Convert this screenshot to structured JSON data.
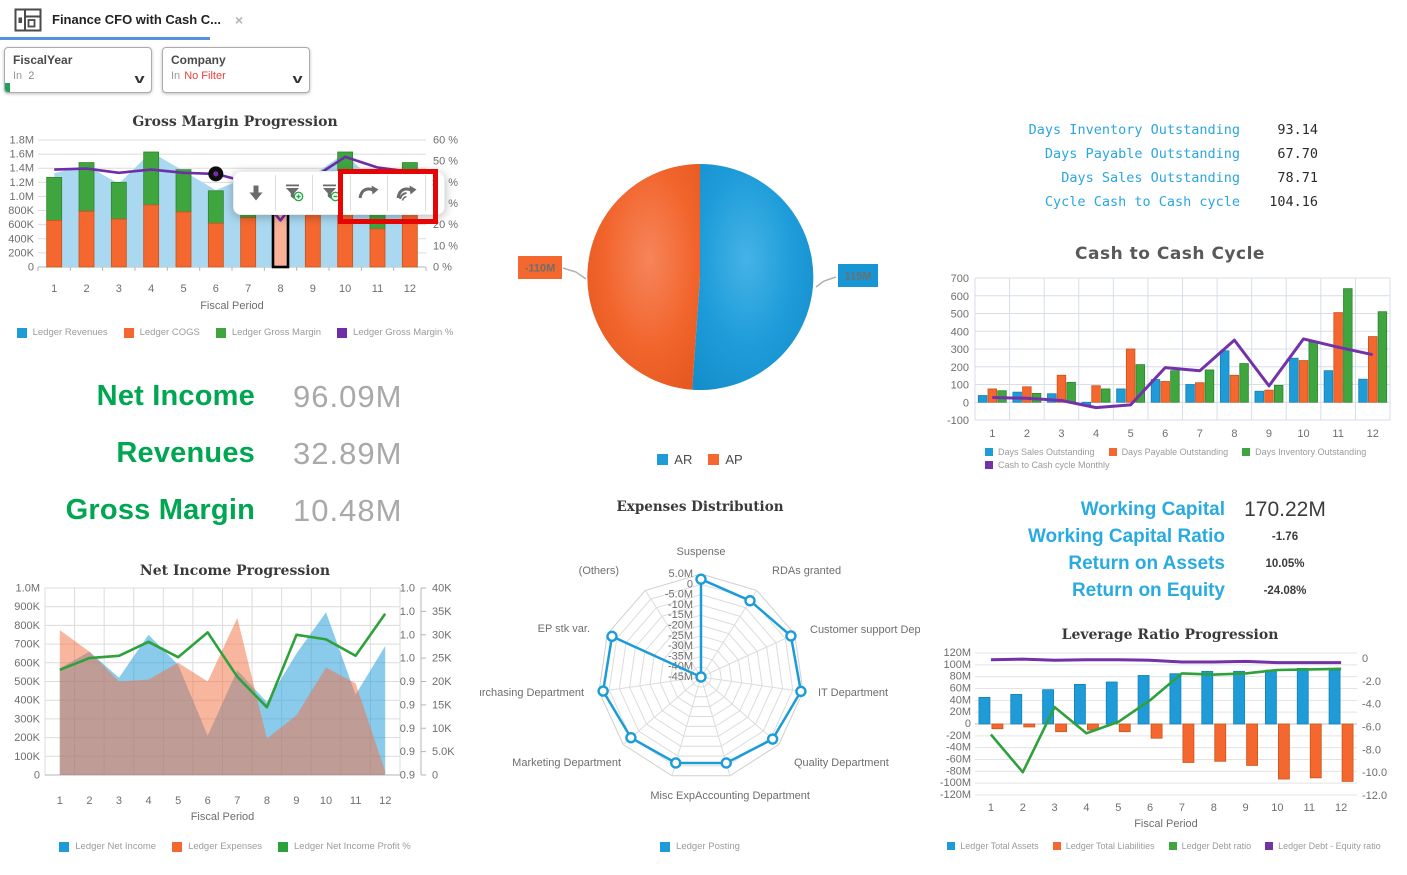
{
  "tab": {
    "title": "Finance CFO with Cash C...",
    "close": "×"
  },
  "filters": [
    {
      "label": "FiscalYear",
      "operator": "In",
      "value": "2"
    },
    {
      "label": "Company",
      "operator": "In",
      "value": "No Filter"
    }
  ],
  "toolbar_popup": {
    "close": "×",
    "buttons": [
      "drill-down",
      "add-filter",
      "exclude-filter",
      "undo",
      "undo-all"
    ]
  },
  "kpi_left": [
    {
      "label": "Net Income",
      "value": "96.09M"
    },
    {
      "label": "Revenues",
      "value": "32.89M"
    },
    {
      "label": "Gross Margin",
      "value": "10.48M"
    }
  ],
  "kpi_days": [
    {
      "label": "Days Inventory Outstanding",
      "value": "93.14"
    },
    {
      "label": "Days Payable Outstanding",
      "value": "67.70"
    },
    {
      "label": "Days Sales Outstanding",
      "value": "78.71"
    },
    {
      "label": "Cycle Cash to Cash cycle",
      "value": "104.16"
    }
  ],
  "kpi_working": [
    {
      "label": "Working Capital",
      "value": "170.22M"
    },
    {
      "label": "Working Capital Ratio",
      "value": "-1.76"
    },
    {
      "label": "Return on Assets",
      "value": "10.05%"
    },
    {
      "label": "Return on Equity",
      "value": "-24.08%"
    }
  ],
  "colors": {
    "blue": "#1f9cd8",
    "orange": "#f4682f",
    "green": "#3fa63f",
    "purple": "#6f2da8",
    "light_blue_area": "#a9d8f0",
    "kpi_green": "#00a651",
    "kpi_blue": "#29abe2",
    "filter_red": "#e8413c",
    "tab_underline": "#5494da",
    "highlight_red": "#e60505"
  },
  "chart_data": [
    {
      "type": "bar",
      "title": "Gross Margin Progression",
      "categories": [
        "1",
        "2",
        "3",
        "4",
        "5",
        "6",
        "7",
        "8",
        "9",
        "10",
        "11",
        "12"
      ],
      "xlabel": "Fiscal Period",
      "ylim_left": [
        0,
        1800000
      ],
      "ylim_right": [
        0,
        60
      ],
      "left_ticks": [
        "1.8M",
        "1.6M",
        "1.4M",
        "1.2M",
        "1.0M",
        "800K",
        "600K",
        "400K",
        "200K",
        "0"
      ],
      "right_ticks": [
        "60 %",
        "50 %",
        "40 %",
        "30 %",
        "20 %",
        "10 %",
        "0 %"
      ],
      "selected_period": 8,
      "marker_period": 6,
      "series": [
        {
          "name": "Ledger Revenues",
          "type": "area",
          "color": "#a9d8f0",
          "values_M": [
            1.33,
            1.44,
            1.18,
            1.63,
            1.36,
            1.09,
            1.28,
            1.22,
            1.3,
            1.62,
            1.13,
            1.47
          ]
        },
        {
          "name": "Ledger COGS",
          "type": "bar",
          "color": "#f4682f",
          "values_K": [
            660,
            790,
            680,
            880,
            780,
            620,
            700,
            780,
            790,
            760,
            540,
            790
          ]
        },
        {
          "name": "Ledger Gross Margin",
          "type": "bar-stacked",
          "color": "#3fa63f",
          "values_K": [
            610,
            690,
            520,
            750,
            600,
            460,
            600,
            470,
            510,
            870,
            610,
            690
          ]
        },
        {
          "name": "Ledger Gross Margin %",
          "type": "line",
          "color": "#6f2da8",
          "values_pct": [
            46,
            46.5,
            44.5,
            46,
            44.5,
            44,
            40,
            22,
            42,
            52,
            47,
            45
          ]
        }
      ],
      "legend": [
        {
          "label": "Ledger Revenues",
          "color": "#1f9cd8"
        },
        {
          "label": "Ledger COGS",
          "color": "#f4682f"
        },
        {
          "label": "Ledger Gross Margin",
          "color": "#3fa63f"
        },
        {
          "label": "Ledger Gross Margin %",
          "color": "#6f2da8"
        }
      ]
    },
    {
      "type": "area",
      "title": "Net Income Progression",
      "categories": [
        "1",
        "2",
        "3",
        "4",
        "5",
        "6",
        "7",
        "8",
        "9",
        "10",
        "11",
        "12"
      ],
      "xlabel": "Fiscal Period",
      "ylim_left": [
        0,
        1000000
      ],
      "left_ticks": [
        "1.0M",
        "900K",
        "800K",
        "700K",
        "600K",
        "500K",
        "400K",
        "300K",
        "200K",
        "100K",
        "0"
      ],
      "right_ticks_ratio": [
        "1.0",
        "1.0",
        "1.0",
        "1.0",
        "0.9",
        "0.9",
        "0.9",
        "0.9",
        "0.9"
      ],
      "right_ticks_k": [
        "40K",
        "35K",
        "30K",
        "25K",
        "20K",
        "15K",
        "10K",
        "5.0K",
        "0"
      ],
      "series": [
        {
          "name": "Ledger Net Income",
          "type": "area",
          "color": "#1f9cd8",
          "values_M": [
            0.57,
            0.66,
            0.52,
            0.75,
            0.59,
            0.21,
            0.56,
            0.39,
            0.65,
            0.87,
            0.43,
            0.69
          ]
        },
        {
          "name": "Ledger Expenses",
          "type": "area",
          "color": "#f4682f",
          "values_M": [
            0.775,
            0.66,
            0.5,
            0.51,
            0.6,
            0.5,
            0.84,
            0.195,
            0.32,
            0.575,
            0.49,
            0.02
          ]
        },
        {
          "name": "Ledger Net Income Profit %",
          "type": "line",
          "color": "#2ea13c",
          "values_K": [
            22.5,
            25,
            25.5,
            28.5,
            25.2,
            30.5,
            21,
            14.5,
            30,
            29,
            25.5,
            34.5
          ]
        }
      ],
      "legend": [
        {
          "label": "Ledger Net Income",
          "color": "#1f9cd8"
        },
        {
          "label": "Ledger Expenses",
          "color": "#f4682f"
        },
        {
          "label": "Ledger Net Income Profit %",
          "color": "#2ea13c"
        }
      ]
    },
    {
      "type": "pie",
      "title": "",
      "slices": [
        {
          "label": "AR",
          "value": 115,
          "value_label": "115M",
          "color": "#1898d5"
        },
        {
          "label": "AP",
          "value": 110,
          "value_label": "-110M",
          "color": "#f4682f"
        }
      ],
      "legend": [
        {
          "label": "AR",
          "color": "#1f9cd8"
        },
        {
          "label": "AP",
          "color": "#f4682f"
        }
      ]
    },
    {
      "type": "radar",
      "title": "Expenses Distribution",
      "axes": [
        "Suspense",
        "RDAs granted",
        "Customer support Department",
        "IT Department",
        "Quality Department",
        "Accounting Department",
        "Misc Exp",
        "Marketing Department",
        "Purchasing Department",
        "EP stk var.",
        "(Others)"
      ],
      "scale_ticks": [
        "5.0M",
        "0",
        "-5.0M",
        "-10M",
        "-15M",
        "-20M",
        "-25M",
        "-30M",
        "-35M",
        "-40M",
        "-45M"
      ],
      "scale_range_M": [
        -45,
        5
      ],
      "series": [
        {
          "name": "Ledger Posting",
          "color": "#1b9cd9",
          "values_M": [
            2.5,
            -1,
            3,
            4,
            1,
            -1.5,
            -1.5,
            0,
            3,
            2.5,
            -45
          ]
        }
      ],
      "legend": [
        {
          "label": "Ledger Posting",
          "color": "#1f9cd8"
        }
      ]
    },
    {
      "type": "bar",
      "title": "Cash to Cash Cycle",
      "categories": [
        "1",
        "2",
        "3",
        "4",
        "5",
        "6",
        "7",
        "8",
        "9",
        "10",
        "11",
        "12"
      ],
      "ylim": [
        -100,
        700
      ],
      "y_ticks": [
        "700",
        "600",
        "500",
        "400",
        "300",
        "200",
        "100",
        "0",
        "-100"
      ],
      "series": [
        {
          "name": "Days Sales Outstanding",
          "type": "bar",
          "color": "#1f9cd8",
          "values": [
            38,
            57,
            48,
            -18,
            75,
            128,
            100,
            290,
            62,
            248,
            178,
            130
          ]
        },
        {
          "name": "Days Payable Outstanding",
          "type": "bar",
          "color": "#f4682f",
          "values": [
            75,
            87,
            152,
            93,
            300,
            117,
            110,
            152,
            68,
            235,
            505,
            370
          ]
        },
        {
          "name": "Days Inventory Outstanding",
          "type": "bar",
          "color": "#3fa63f",
          "values": [
            65,
            50,
            112,
            75,
            212,
            178,
            182,
            218,
            95,
            340,
            640,
            510
          ]
        },
        {
          "name": "Cash to Cash cycle Monthly",
          "type": "line",
          "color": "#7332a8",
          "values": [
            27,
            22,
            10,
            -30,
            -15,
            195,
            178,
            350,
            92,
            357,
            310,
            268
          ]
        }
      ],
      "legend": [
        {
          "label": "Days Sales Outstanding",
          "color": "#1f9cd8"
        },
        {
          "label": "Days Payable Outstanding",
          "color": "#f4682f"
        },
        {
          "label": "Days Inventory Outstanding",
          "color": "#3fa63f"
        },
        {
          "label": "Cash to Cash cycle Monthly",
          "color": "#7332a8"
        }
      ]
    },
    {
      "type": "bar",
      "title": "Leverage Ratio Progression",
      "categories": [
        "1",
        "2",
        "3",
        "4",
        "5",
        "6",
        "7",
        "8",
        "9",
        "10",
        "11",
        "12"
      ],
      "xlabel": "Fiscal Period",
      "ylim_left": [
        -120000000,
        120000000
      ],
      "ylim_right": [
        -12,
        0
      ],
      "left_ticks": [
        "120M",
        "100M",
        "80M",
        "60M",
        "40M",
        "20M",
        "0",
        "-20M",
        "-40M",
        "-60M",
        "-80M",
        "-100M",
        "-120M"
      ],
      "right_ticks": [
        "0",
        "-2.0",
        "-4.0",
        "-6.0",
        "-8.0",
        "-10.0",
        "-12.0"
      ],
      "series": [
        {
          "name": "Ledger Total Assets",
          "type": "bar",
          "color": "#1f9cd8",
          "values_M": [
            45,
            50,
            58,
            67,
            71,
            82,
            85,
            89,
            89,
            91,
            94,
            91
          ]
        },
        {
          "name": "Ledger Total Liabilities",
          "type": "bar",
          "color": "#f4682f",
          "values_M": [
            -8,
            -5,
            -13,
            -10,
            -13,
            -24,
            -65,
            -63,
            -70,
            -93,
            -91,
            -97
          ]
        },
        {
          "name": "Ledger Debt ratio",
          "type": "line",
          "color": "#2ea13c",
          "values": [
            -6.7,
            -10,
            -4.3,
            -6.6,
            -5.6,
            -3.7,
            -1.35,
            -1.45,
            -1.35,
            -1.05,
            -1.0,
            -0.95
          ]
        },
        {
          "name": "Ledger Debt - Equity ratio",
          "type": "line",
          "color": "#7332a8",
          "values": [
            -0.15,
            -0.1,
            -0.2,
            -0.15,
            -0.15,
            -0.2,
            -0.35,
            -0.35,
            -0.3,
            -0.4,
            -0.4,
            -0.4
          ]
        }
      ],
      "legend": [
        {
          "label": "Ledger Total Assets",
          "color": "#1f9cd8"
        },
        {
          "label": "Ledger Total Liabilities",
          "color": "#f4682f"
        },
        {
          "label": "Ledger Debt ratio",
          "color": "#3fa63f"
        },
        {
          "label": "Ledger Debt - Equity ratio",
          "color": "#7332a8"
        }
      ]
    }
  ]
}
